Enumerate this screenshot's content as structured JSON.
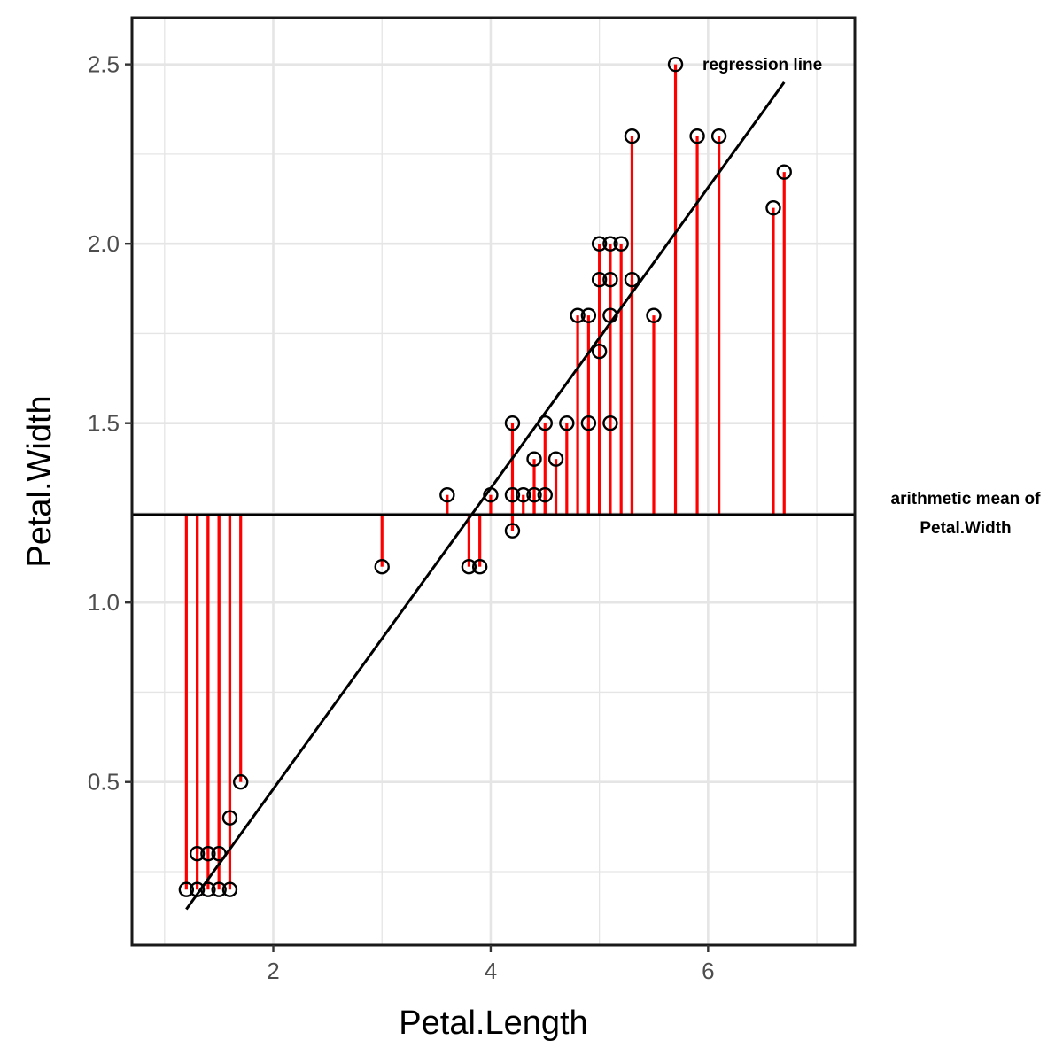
{
  "chart_data": {
    "type": "scatter",
    "title": "",
    "xlabel": "Petal.Length",
    "ylabel": "Petal.Width",
    "xlim": [
      0.7,
      7.35
    ],
    "ylim": [
      0.045,
      2.63
    ],
    "x_ticks": [
      2,
      4,
      6
    ],
    "x_tick_labels": [
      "2",
      "4",
      "6"
    ],
    "y_ticks": [
      0.5,
      1.0,
      1.5,
      2.0,
      2.5
    ],
    "y_tick_labels": [
      "0.5",
      "1.0",
      "1.5",
      "2.0",
      "2.5"
    ],
    "grid": true,
    "legend": "none",
    "mean_y": 1.245,
    "regression": {
      "x_start": 1.2,
      "y_start": 0.145,
      "x_end": 6.7,
      "y_end": 2.45
    },
    "annotations": {
      "regression_label": "regression line",
      "mean_label_line1": "arithmetic mean of",
      "mean_label_line2": "Petal.Width"
    },
    "points": [
      {
        "x": 1.2,
        "y": 0.2
      },
      {
        "x": 1.3,
        "y": 0.2
      },
      {
        "x": 1.4,
        "y": 0.2
      },
      {
        "x": 1.5,
        "y": 0.2
      },
      {
        "x": 1.6,
        "y": 0.2
      },
      {
        "x": 1.3,
        "y": 0.3
      },
      {
        "x": 1.4,
        "y": 0.3
      },
      {
        "x": 1.5,
        "y": 0.3
      },
      {
        "x": 1.6,
        "y": 0.4
      },
      {
        "x": 1.7,
        "y": 0.5
      },
      {
        "x": 3.0,
        "y": 1.1
      },
      {
        "x": 3.6,
        "y": 1.3
      },
      {
        "x": 3.8,
        "y": 1.1
      },
      {
        "x": 3.9,
        "y": 1.1
      },
      {
        "x": 4.0,
        "y": 1.3
      },
      {
        "x": 4.2,
        "y": 1.5
      },
      {
        "x": 4.2,
        "y": 1.3
      },
      {
        "x": 4.2,
        "y": 1.2
      },
      {
        "x": 4.3,
        "y": 1.3
      },
      {
        "x": 4.4,
        "y": 1.3
      },
      {
        "x": 4.4,
        "y": 1.4
      },
      {
        "x": 4.5,
        "y": 1.3
      },
      {
        "x": 4.5,
        "y": 1.5
      },
      {
        "x": 4.6,
        "y": 1.4
      },
      {
        "x": 4.7,
        "y": 1.5
      },
      {
        "x": 4.8,
        "y": 1.8
      },
      {
        "x": 4.9,
        "y": 1.8
      },
      {
        "x": 4.9,
        "y": 1.5
      },
      {
        "x": 5.0,
        "y": 2.0
      },
      {
        "x": 5.0,
        "y": 1.9
      },
      {
        "x": 5.0,
        "y": 1.7
      },
      {
        "x": 5.1,
        "y": 2.0
      },
      {
        "x": 5.1,
        "y": 1.9
      },
      {
        "x": 5.1,
        "y": 1.8
      },
      {
        "x": 5.1,
        "y": 1.5
      },
      {
        "x": 5.2,
        "y": 2.0
      },
      {
        "x": 5.3,
        "y": 2.3
      },
      {
        "x": 5.3,
        "y": 1.9
      },
      {
        "x": 5.5,
        "y": 1.8
      },
      {
        "x": 5.7,
        "y": 2.5
      },
      {
        "x": 5.9,
        "y": 2.3
      },
      {
        "x": 6.1,
        "y": 2.3
      },
      {
        "x": 6.6,
        "y": 2.1
      },
      {
        "x": 6.7,
        "y": 2.2
      }
    ],
    "colors": {
      "residual": "#ff0000",
      "lines": "#000000",
      "points": "#000000",
      "grid": "#e5e5e5"
    }
  }
}
